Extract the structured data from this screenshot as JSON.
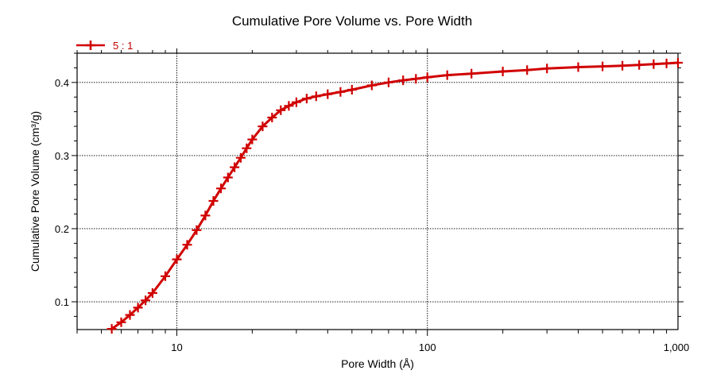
{
  "chart_data": {
    "type": "line",
    "title": "Cumulative Pore Volume vs. Pore Width",
    "xlabel": "Pore Width (Å)",
    "ylabel": "Cumulative Pore Volume (cm³/g)",
    "xscale": "log",
    "xlim": [
      4,
      1000
    ],
    "ylim": [
      0.062,
      0.44
    ],
    "x_ticks": [
      {
        "value": 10,
        "label": "10"
      },
      {
        "value": 100,
        "label": "100"
      },
      {
        "value": 1000,
        "label": "1,000"
      }
    ],
    "y_ticks": [
      {
        "value": 0.1,
        "label": "0.1"
      },
      {
        "value": 0.2,
        "label": "0.2"
      },
      {
        "value": 0.3,
        "label": "0.3"
      },
      {
        "value": 0.4,
        "label": "0.4"
      }
    ],
    "grid": true,
    "legend_position": "top-left",
    "series": [
      {
        "name": "5 : 1",
        "color": "#d00000",
        "marker": "plus",
        "x": [
          5.5,
          6,
          6.5,
          7,
          7.5,
          8,
          9,
          10,
          11,
          12,
          13,
          14,
          15,
          16,
          17,
          18,
          19,
          20,
          22,
          24,
          26,
          28,
          30,
          33,
          36,
          40,
          45,
          50,
          60,
          70,
          80,
          90,
          100,
          120,
          150,
          200,
          250,
          300,
          400,
          500,
          600,
          700,
          800,
          900,
          1000
        ],
        "values": [
          0.063,
          0.072,
          0.082,
          0.092,
          0.102,
          0.112,
          0.135,
          0.158,
          0.178,
          0.198,
          0.218,
          0.238,
          0.255,
          0.27,
          0.284,
          0.297,
          0.31,
          0.322,
          0.34,
          0.352,
          0.362,
          0.368,
          0.373,
          0.378,
          0.381,
          0.384,
          0.387,
          0.39,
          0.396,
          0.4,
          0.403,
          0.405,
          0.407,
          0.41,
          0.412,
          0.415,
          0.417,
          0.419,
          0.421,
          0.422,
          0.423,
          0.424,
          0.425,
          0.426,
          0.427
        ]
      }
    ]
  }
}
